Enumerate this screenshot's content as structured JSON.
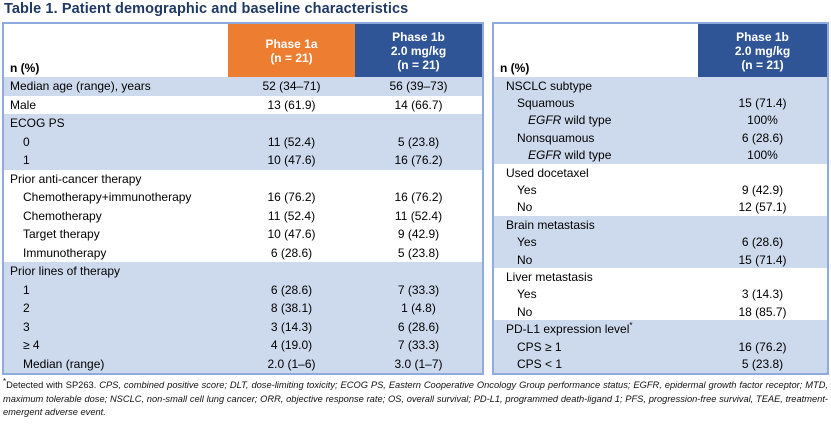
{
  "title": "Table 1. Patient demographic and baseline characteristics",
  "colors": {
    "title_navy": "#1F3864",
    "header_orange": "#ED7D31",
    "header_blue": "#2F5597",
    "band_light_blue": "#CDD9EC",
    "table_border": "#8FAADC"
  },
  "left_table": {
    "corner_label": "n (%)",
    "columns": [
      "Phase 1a\n(n = 21)",
      "Phase 1b\n2.0 mg/kg\n(n = 21)"
    ],
    "rows": [
      {
        "label": "Median age (range), years",
        "v1": "52 (34–71)",
        "v2": "56 (39–73)",
        "indent": 0,
        "band": "blue"
      },
      {
        "label": "Male",
        "v1": "13 (61.9)",
        "v2": "14 (66.7)",
        "indent": 0,
        "band": "white"
      },
      {
        "label": "ECOG PS",
        "v1": "",
        "v2": "",
        "indent": 0,
        "band": "blue"
      },
      {
        "label": "0",
        "v1": "11 (52.4)",
        "v2": "5 (23.8)",
        "indent": 1,
        "band": "blue"
      },
      {
        "label": "1",
        "v1": "10 (47.6)",
        "v2": "16 (76.2)",
        "indent": 1,
        "band": "blue"
      },
      {
        "label": "Prior anti-cancer therapy",
        "v1": "",
        "v2": "",
        "indent": 0,
        "band": "white"
      },
      {
        "label": "Chemotherapy+immunotherapy",
        "v1": "16 (76.2)",
        "v2": "16 (76.2)",
        "indent": 1,
        "band": "white"
      },
      {
        "label": "Chemotherapy",
        "v1": "11 (52.4)",
        "v2": "11 (52.4)",
        "indent": 1,
        "band": "white"
      },
      {
        "label": "Target therapy",
        "v1": "10 (47.6)",
        "v2": "9 (42.9)",
        "indent": 1,
        "band": "white"
      },
      {
        "label": "Immunotherapy",
        "v1": "6 (28.6)",
        "v2": "5 (23.8)",
        "indent": 1,
        "band": "white"
      },
      {
        "label": "Prior lines of therapy",
        "v1": "",
        "v2": "",
        "indent": 0,
        "band": "blue"
      },
      {
        "label": "1",
        "v1": "6 (28.6)",
        "v2": "7 (33.3)",
        "indent": 1,
        "band": "blue"
      },
      {
        "label": "2",
        "v1": "8 (38.1)",
        "v2": "1 (4.8)",
        "indent": 1,
        "band": "blue"
      },
      {
        "label": "3",
        "v1": "3 (14.3)",
        "v2": "6 (28.6)",
        "indent": 1,
        "band": "blue"
      },
      {
        "label": "≥ 4",
        "v1": "4 (19.0)",
        "v2": "7 (33.3)",
        "indent": 1,
        "band": "blue"
      },
      {
        "label": "Median (range)",
        "v1": "2.0 (1–6)",
        "v2": "3.0 (1–7)",
        "indent": 1,
        "band": "blue"
      }
    ]
  },
  "right_table": {
    "corner_label": "n (%)",
    "columns": [
      "Phase 1b\n2.0 mg/kg\n(n = 21)"
    ],
    "rows": [
      {
        "em": "",
        "label": "NSCLC subtype",
        "sup": "",
        "v1": "",
        "indent": 0,
        "band": "blue"
      },
      {
        "em": "",
        "label": "Squamous",
        "sup": "",
        "v1": "15 (71.4)",
        "indent": 1,
        "band": "blue"
      },
      {
        "em": "EGFR",
        "label": " wild type",
        "sup": "",
        "v1": "100%",
        "indent": 2,
        "band": "blue"
      },
      {
        "em": "",
        "label": "Nonsquamous",
        "sup": "",
        "v1": "6 (28.6)",
        "indent": 1,
        "band": "blue"
      },
      {
        "em": "EGFR",
        "label": " wild type",
        "sup": "",
        "v1": "100%",
        "indent": 2,
        "band": "blue"
      },
      {
        "em": "",
        "label": "Used docetaxel",
        "sup": "",
        "v1": "",
        "indent": 0,
        "band": "white"
      },
      {
        "em": "",
        "label": "Yes",
        "sup": "",
        "v1": "9 (42.9)",
        "indent": 1,
        "band": "white"
      },
      {
        "em": "",
        "label": "No",
        "sup": "",
        "v1": "12 (57.1)",
        "indent": 1,
        "band": "white"
      },
      {
        "em": "",
        "label": "Brain metastasis",
        "sup": "",
        "v1": "",
        "indent": 0,
        "band": "blue"
      },
      {
        "em": "",
        "label": "Yes",
        "sup": "",
        "v1": "6 (28.6)",
        "indent": 1,
        "band": "blue"
      },
      {
        "em": "",
        "label": "No",
        "sup": "",
        "v1": "15 (71.4)",
        "indent": 1,
        "band": "blue"
      },
      {
        "em": "",
        "label": "Liver metastasis",
        "sup": "",
        "v1": "",
        "indent": 0,
        "band": "white"
      },
      {
        "em": "",
        "label": "Yes",
        "sup": "",
        "v1": "3 (14.3)",
        "indent": 1,
        "band": "white"
      },
      {
        "em": "",
        "label": "No",
        "sup": "",
        "v1": "18 (85.7)",
        "indent": 1,
        "band": "white"
      },
      {
        "em": "",
        "label": "PD-L1 expression level",
        "sup": "*",
        "v1": "",
        "indent": 0,
        "band": "blue"
      },
      {
        "em": "",
        "label": "CPS ≥ 1",
        "sup": "",
        "v1": "16 (76.2)",
        "indent": 1,
        "band": "blue"
      },
      {
        "em": "",
        "label": "CPS < 1",
        "sup": "",
        "v1": "5 (23.8)",
        "indent": 1,
        "band": "blue"
      }
    ]
  },
  "footnote": {
    "sup": "*",
    "plain": "Detected with SP263. ",
    "italic": "CPS, combined positive score; DLT, dose-limiting toxicity; ECOG PS, Eastern Cooperative Oncology Group performance status; EGFR, epidermal growth factor receptor; MTD, maximum tolerable dose; NSCLC, non-small cell lung cancer; ORR, objective response rate; OS, overall survival; PD-L1, programmed death-ligand 1; PFS, progression-free survival, TEAE, treatment-emergent adverse event."
  }
}
